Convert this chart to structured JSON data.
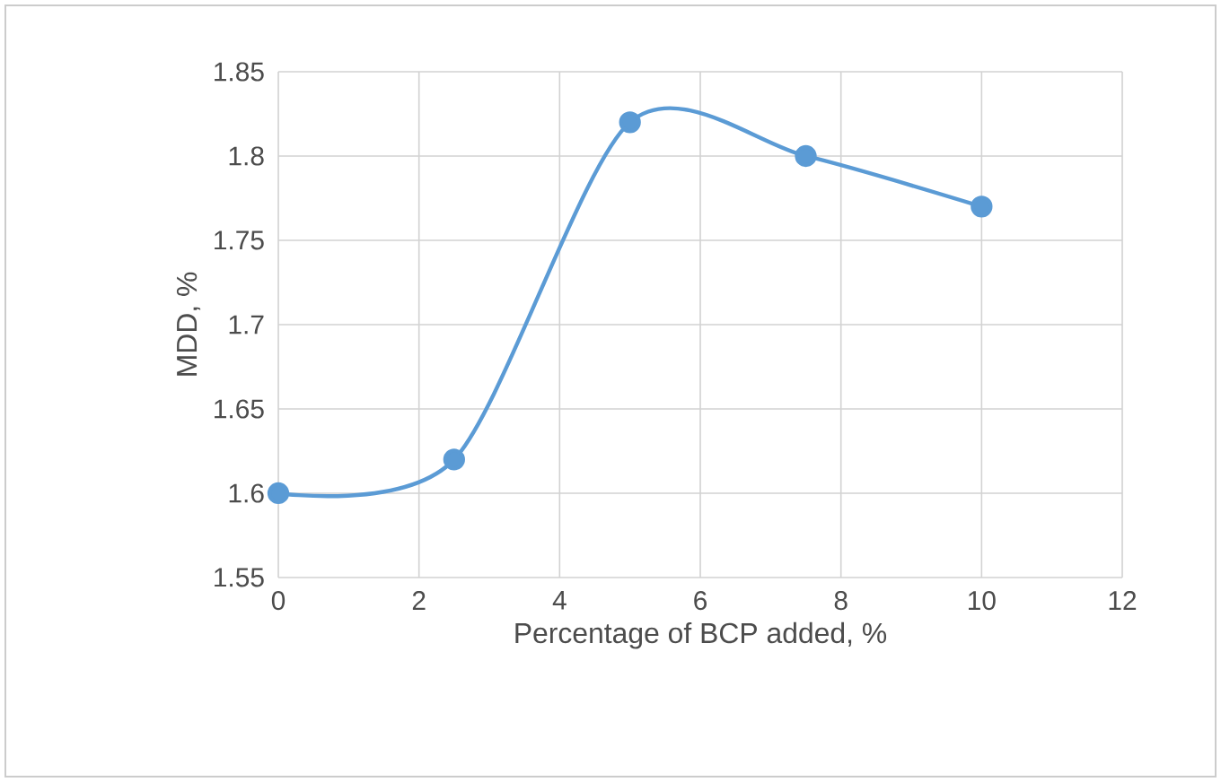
{
  "chart_data": {
    "type": "line",
    "xlabel": "Percentage of BCP added, %",
    "ylabel": "MDD, %",
    "x": [
      0,
      2.5,
      5,
      7.5,
      10
    ],
    "series": [
      {
        "color": "#5b9bd5",
        "values": [
          1.6,
          1.62,
          1.82,
          1.8,
          1.77
        ]
      }
    ],
    "xlim": [
      0,
      12
    ],
    "xticks": [
      0,
      2,
      4,
      6,
      8,
      10,
      12
    ],
    "ylim": [
      1.55,
      1.85
    ],
    "yticks": [
      1.55,
      1.6,
      1.65,
      1.7,
      1.75,
      1.8,
      1.85
    ],
    "grid": true,
    "marker": "circle",
    "line_style": "solid"
  }
}
